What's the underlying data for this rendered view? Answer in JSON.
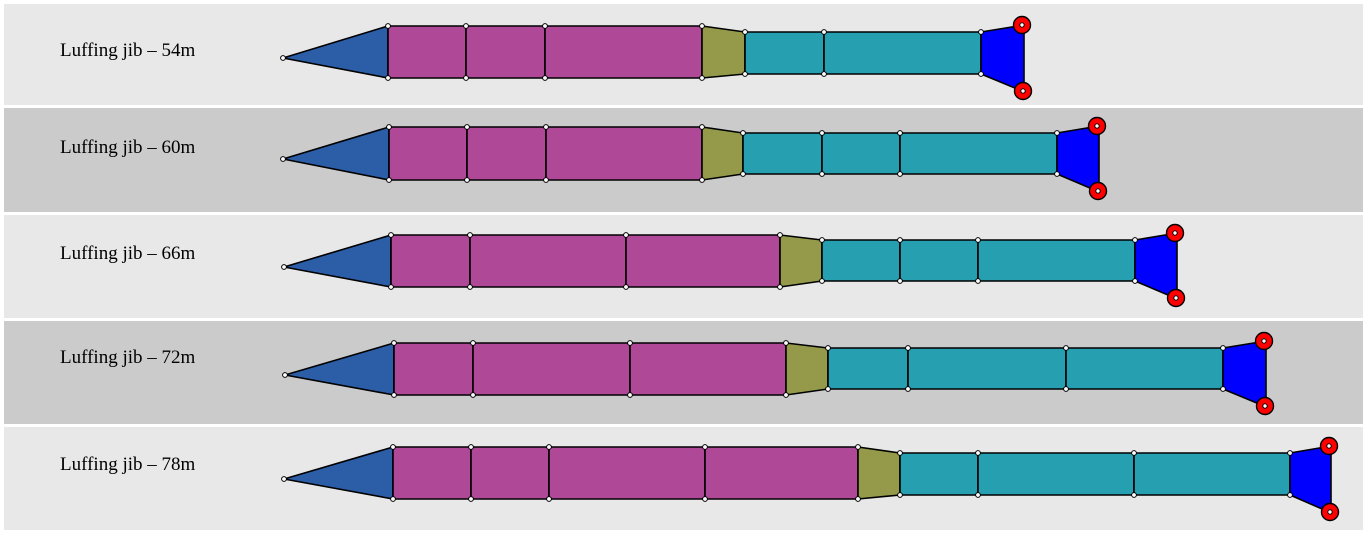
{
  "colors": {
    "row_light": "#e8e8e8",
    "row_dark": "#cbcbcb",
    "base": "#2c5ea8",
    "lower": "#ae4897",
    "transition": "#949a4a",
    "upper": "#26a0b0",
    "head": "#0000ff",
    "sheave": "#ff0000",
    "outline": "#000000",
    "pin": "#ffffff"
  },
  "rows": [
    {
      "label": "Luffing jib – 54m",
      "shade": "light",
      "lower_segments": 3,
      "upper_segments": 2
    },
    {
      "label": "Luffing jib – 60m",
      "shade": "dark",
      "lower_segments": 3,
      "upper_segments": 3
    },
    {
      "label": "Luffing jib – 66m",
      "shade": "light",
      "lower_segments": 3,
      "upper_segments": 3
    },
    {
      "label": "Luffing jib – 72m",
      "shade": "dark",
      "lower_segments": 3,
      "upper_segments": 3
    },
    {
      "label": "Luffing jib – 78m",
      "shade": "light",
      "lower_segments": 4,
      "upper_segments": 3
    }
  ]
}
